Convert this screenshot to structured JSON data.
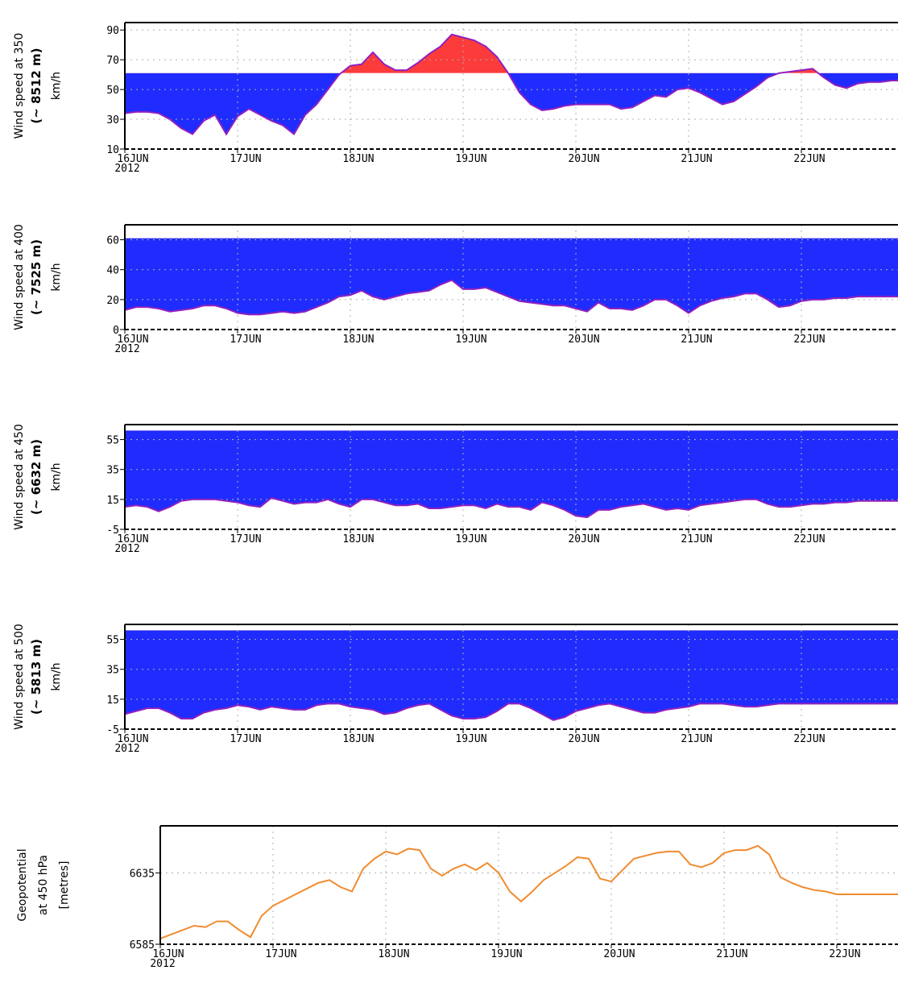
{
  "colors": {
    "band": "#1f2cfd",
    "exceed": "#fc3b3b",
    "line": "#9020c0",
    "geopotential": "#f08c30",
    "grid": "#b0b0b0"
  },
  "x_labels": [
    "16JUN",
    "17JUN",
    "18JUN",
    "19JUN",
    "20JUN",
    "21JUN",
    "22JUN"
  ],
  "x_year": "2012",
  "chart_data": [
    {
      "type": "area",
      "ylabel": "Wind speed at 350",
      "ylabel_bold": "(~ 8512 m)",
      "ylabel_unit": "km/h",
      "ylim": [
        10,
        95
      ],
      "yticks": [
        10,
        30,
        50,
        70,
        90
      ],
      "threshold": 61,
      "x": [
        0,
        0.1,
        0.2,
        0.3,
        0.4,
        0.5,
        0.6,
        0.7,
        0.8,
        0.9,
        1.0,
        1.1,
        1.2,
        1.3,
        1.4,
        1.5,
        1.6,
        1.7,
        1.8,
        1.9,
        2.0,
        2.1,
        2.2,
        2.3,
        2.4,
        2.5,
        2.6,
        2.7,
        2.8,
        2.9,
        3.0,
        3.1,
        3.2,
        3.3,
        3.4,
        3.5,
        3.6,
        3.7,
        3.8,
        3.9,
        4.0,
        4.1,
        4.2,
        4.3,
        4.4,
        4.5,
        4.6,
        4.7,
        4.8,
        4.9,
        5.0,
        5.1,
        5.2,
        5.3,
        5.4,
        5.5,
        5.6,
        5.7,
        5.8,
        5.9,
        6.0,
        6.1,
        6.2,
        6.3,
        6.4,
        6.5,
        6.6,
        6.7,
        6.8,
        6.9,
        7.0
      ],
      "values": [
        34,
        35,
        35,
        34,
        30,
        24,
        20,
        29,
        33,
        20,
        32,
        37,
        33,
        29,
        26,
        20,
        33,
        40,
        50,
        60,
        66,
        67,
        75,
        67,
        63,
        63,
        68,
        74,
        79,
        87,
        85,
        83,
        79,
        72,
        61,
        48,
        40,
        36,
        37,
        39,
        40,
        40,
        40,
        40,
        37,
        38,
        42,
        46,
        45,
        50,
        51,
        48,
        44,
        40,
        42,
        47,
        52,
        58,
        61,
        62,
        63,
        64,
        58,
        53,
        51,
        54,
        55,
        55,
        56,
        56,
        57
      ]
    },
    {
      "type": "area",
      "ylabel": "Wind speed at 400",
      "ylabel_bold": "(~ 7525 m)",
      "ylabel_unit": "km/h",
      "ylim": [
        0,
        70
      ],
      "yticks": [
        0,
        20,
        40,
        60
      ],
      "threshold": 61,
      "x": [
        0,
        0.1,
        0.2,
        0.3,
        0.4,
        0.5,
        0.6,
        0.7,
        0.8,
        0.9,
        1.0,
        1.1,
        1.2,
        1.3,
        1.4,
        1.5,
        1.6,
        1.7,
        1.8,
        1.9,
        2.0,
        2.1,
        2.2,
        2.3,
        2.4,
        2.5,
        2.6,
        2.7,
        2.8,
        2.9,
        3.0,
        3.1,
        3.2,
        3.3,
        3.4,
        3.5,
        3.6,
        3.7,
        3.8,
        3.9,
        4.0,
        4.1,
        4.2,
        4.3,
        4.4,
        4.5,
        4.6,
        4.7,
        4.8,
        4.9,
        5.0,
        5.1,
        5.2,
        5.3,
        5.4,
        5.5,
        5.6,
        5.7,
        5.8,
        5.9,
        6.0,
        6.1,
        6.2,
        6.3,
        6.4,
        6.5,
        6.6,
        6.7,
        6.8,
        6.9,
        7.0
      ],
      "values": [
        13,
        15,
        15,
        14,
        12,
        13,
        14,
        16,
        16,
        14,
        11,
        10,
        10,
        11,
        12,
        11,
        12,
        15,
        18,
        22,
        23,
        26,
        22,
        20,
        22,
        24,
        25,
        26,
        30,
        33,
        27,
        27,
        28,
        25,
        22,
        19,
        18,
        17,
        16,
        16,
        14,
        12,
        18,
        14,
        14,
        13,
        16,
        20,
        20,
        16,
        11,
        16,
        19,
        21,
        22,
        24,
        24,
        20,
        15,
        16,
        19,
        20,
        20,
        21,
        21,
        22,
        22,
        22,
        22,
        22,
        22
      ]
    },
    {
      "type": "area",
      "ylabel": "Wind speed at 450",
      "ylabel_bold": "(~ 6632 m)",
      "ylabel_unit": "km/h",
      "ylim": [
        -5,
        65
      ],
      "yticks": [
        -5,
        15,
        35,
        55
      ],
      "threshold": 61,
      "x": [
        0,
        0.1,
        0.2,
        0.3,
        0.4,
        0.5,
        0.6,
        0.7,
        0.8,
        0.9,
        1.0,
        1.1,
        1.2,
        1.3,
        1.4,
        1.5,
        1.6,
        1.7,
        1.8,
        1.9,
        2.0,
        2.1,
        2.2,
        2.3,
        2.4,
        2.5,
        2.6,
        2.7,
        2.8,
        2.9,
        3.0,
        3.1,
        3.2,
        3.3,
        3.4,
        3.5,
        3.6,
        3.7,
        3.8,
        3.9,
        4.0,
        4.1,
        4.2,
        4.3,
        4.4,
        4.5,
        4.6,
        4.7,
        4.8,
        4.9,
        5.0,
        5.1,
        5.2,
        5.3,
        5.4,
        5.5,
        5.6,
        5.7,
        5.8,
        5.9,
        6.0,
        6.1,
        6.2,
        6.3,
        6.4,
        6.5,
        6.6,
        6.7,
        6.8,
        6.9,
        7.0
      ],
      "values": [
        10,
        11,
        10,
        7,
        10,
        14,
        15,
        15,
        15,
        14,
        13,
        11,
        10,
        16,
        14,
        12,
        13,
        13,
        15,
        12,
        10,
        15,
        15,
        13,
        11,
        11,
        12,
        9,
        9,
        10,
        11,
        11,
        9,
        12,
        10,
        10,
        8,
        13,
        11,
        8,
        4,
        3,
        8,
        8,
        10,
        11,
        12,
        10,
        8,
        9,
        8,
        11,
        12,
        13,
        14,
        15,
        15,
        12,
        10,
        10,
        11,
        12,
        12,
        13,
        13,
        14,
        14,
        14,
        14,
        14,
        14
      ]
    },
    {
      "type": "area",
      "ylabel": "Wind speed at 500",
      "ylabel_bold": "(~ 5813 m)",
      "ylabel_unit": "km/h",
      "ylim": [
        -5,
        65
      ],
      "yticks": [
        -5,
        15,
        35,
        55
      ],
      "threshold": 61,
      "x": [
        0,
        0.1,
        0.2,
        0.3,
        0.4,
        0.5,
        0.6,
        0.7,
        0.8,
        0.9,
        1.0,
        1.1,
        1.2,
        1.3,
        1.4,
        1.5,
        1.6,
        1.7,
        1.8,
        1.9,
        2.0,
        2.1,
        2.2,
        2.3,
        2.4,
        2.5,
        2.6,
        2.7,
        2.8,
        2.9,
        3.0,
        3.1,
        3.2,
        3.3,
        3.4,
        3.5,
        3.6,
        3.7,
        3.8,
        3.9,
        4.0,
        4.1,
        4.2,
        4.3,
        4.4,
        4.5,
        4.6,
        4.7,
        4.8,
        4.9,
        5.0,
        5.1,
        5.2,
        5.3,
        5.4,
        5.5,
        5.6,
        5.7,
        5.8,
        5.9,
        6.0,
        6.1,
        6.2,
        6.3,
        6.4,
        6.5,
        6.6,
        6.7,
        6.8,
        6.9,
        7.0
      ],
      "values": [
        5,
        7,
        9,
        9,
        6,
        2,
        2,
        6,
        8,
        9,
        11,
        10,
        8,
        10,
        9,
        8,
        8,
        11,
        12,
        12,
        10,
        9,
        8,
        5,
        6,
        9,
        11,
        12,
        8,
        4,
        2,
        2,
        3,
        7,
        12,
        12,
        9,
        5,
        1,
        3,
        7,
        9,
        11,
        12,
        10,
        8,
        6,
        6,
        8,
        9,
        10,
        12,
        12,
        12,
        11,
        10,
        10,
        11,
        12,
        12,
        12,
        12,
        12,
        12,
        12,
        12,
        12,
        12,
        12,
        12,
        12
      ]
    },
    {
      "type": "line",
      "ylabel": "Geopotential",
      "ylabel_line2": "at 450 hPa",
      "ylabel_unit": "[metres]",
      "ylim": [
        6585,
        6668
      ],
      "yticks": [
        6585,
        6635
      ],
      "x": [
        0,
        0.1,
        0.2,
        0.3,
        0.4,
        0.5,
        0.6,
        0.7,
        0.8,
        0.9,
        1.0,
        1.1,
        1.2,
        1.3,
        1.4,
        1.5,
        1.6,
        1.7,
        1.8,
        1.9,
        2.0,
        2.1,
        2.2,
        2.3,
        2.4,
        2.5,
        2.6,
        2.7,
        2.8,
        2.9,
        3.0,
        3.1,
        3.2,
        3.3,
        3.4,
        3.5,
        3.6,
        3.7,
        3.8,
        3.9,
        4.0,
        4.1,
        4.2,
        4.3,
        4.4,
        4.5,
        4.6,
        4.7,
        4.8,
        4.9,
        5.0,
        5.1,
        5.2,
        5.3,
        5.4,
        5.5,
        5.6,
        5.7,
        5.8,
        5.9,
        6.0,
        6.1,
        6.2,
        6.3,
        6.4,
        6.5,
        6.6,
        6.7,
        6.8,
        6.9,
        7.0
      ],
      "values": [
        6589,
        6592,
        6595,
        6598,
        6597,
        6601,
        6601,
        6595,
        6590,
        6605,
        6612,
        6616,
        6620,
        6624,
        6628,
        6630,
        6625,
        6622,
        6638,
        6645,
        6650,
        6648,
        6652,
        6651,
        6638,
        6633,
        6638,
        6641,
        6637,
        6642,
        6635,
        6622,
        6615,
        6622,
        6630,
        6635,
        6640,
        6646,
        6645,
        6631,
        6629,
        6637,
        6645,
        6647,
        6649,
        6650,
        6650,
        6641,
        6639,
        6642,
        6649,
        6651,
        6651,
        6654,
        6648,
        6632,
        6628,
        6625,
        6623,
        6622,
        6620,
        6620,
        6620,
        6620,
        6620,
        6620,
        6620,
        6620,
        6620,
        6620,
        6620
      ]
    }
  ]
}
